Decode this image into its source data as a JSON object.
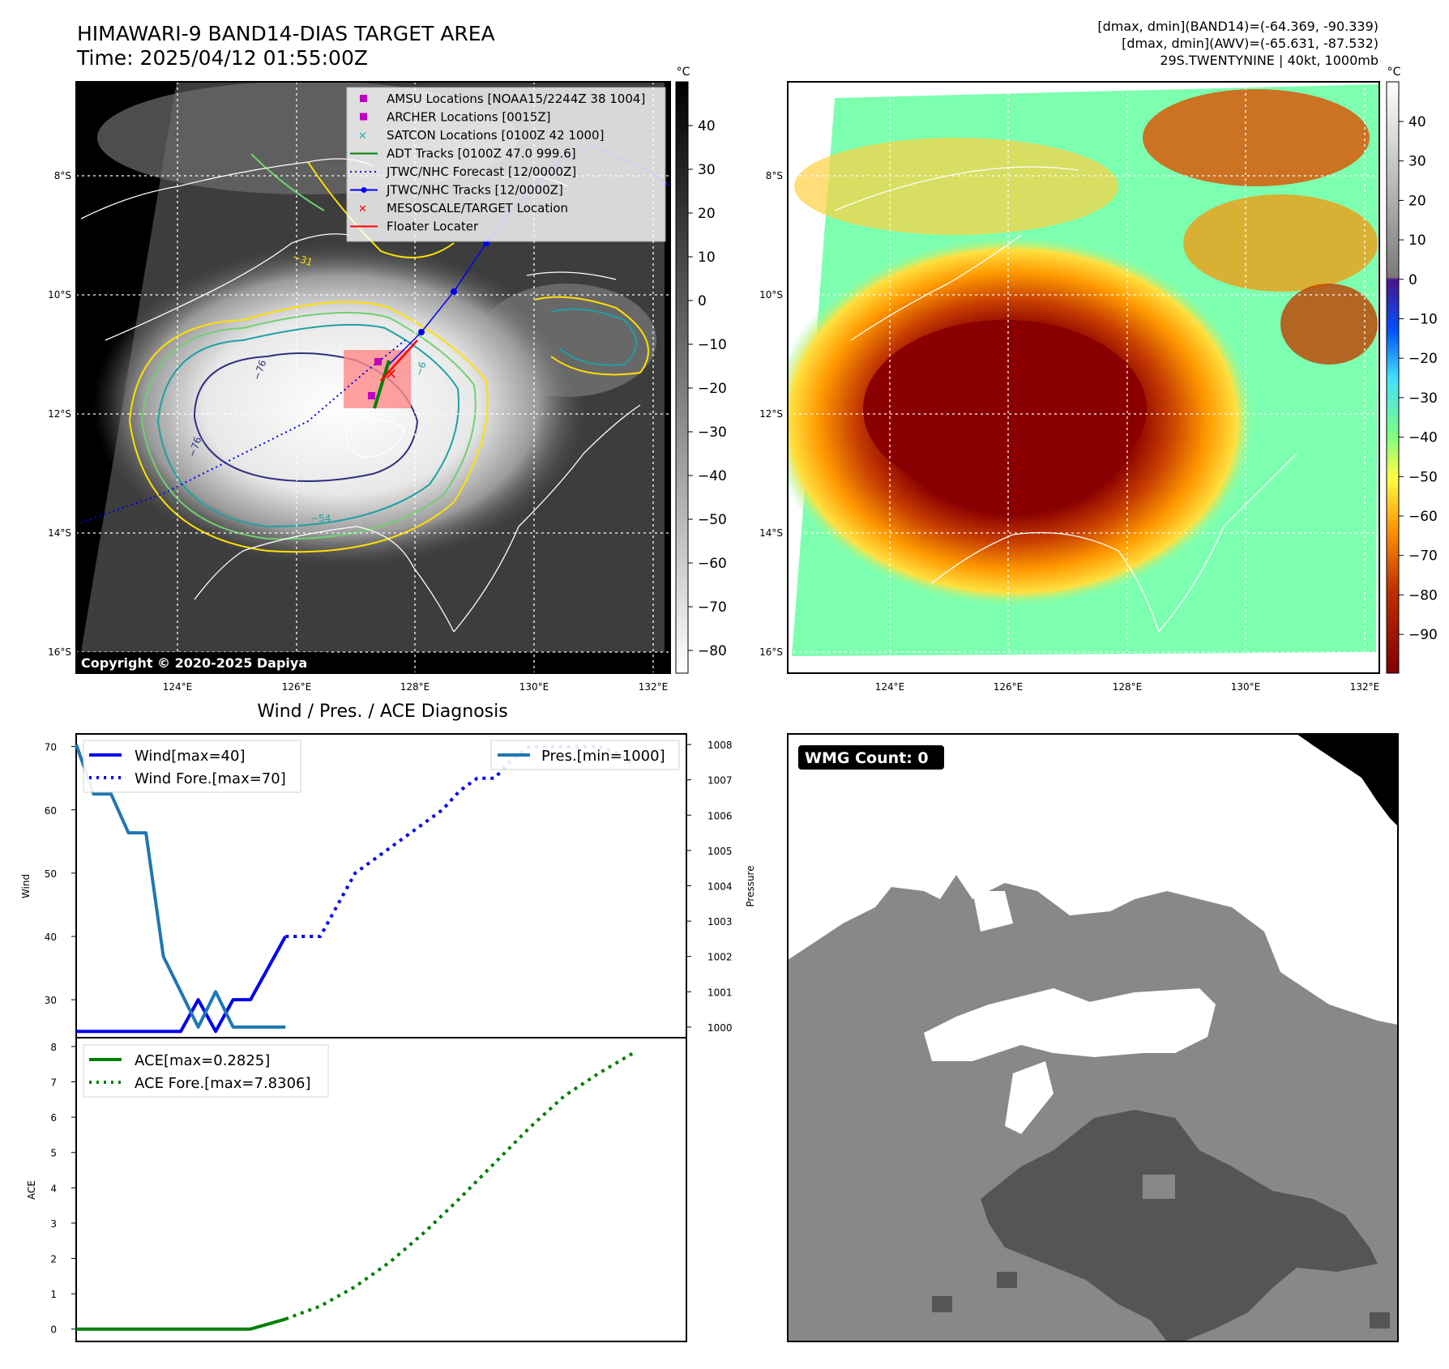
{
  "header": {
    "title_line1": "HIMAWARI-9 BAND14-DIAS TARGET AREA",
    "title_line2": "Time: 2025/04/12 01:55:00Z",
    "info_line1": "[dmax, dmin](BAND14)=(-64.369, -90.339)",
    "info_line2": "[dmax, dmin](AWV)=(-65.631, -87.532)",
    "info_line3": "29S.TWENTYNINE | 40kt, 1000mb"
  },
  "map_left": {
    "copyright": "Copyright © 2020-2025 Dapiya",
    "unit": "°C",
    "colorbar_ticks": [
      "40",
      "30",
      "20",
      "10",
      "0",
      "−10",
      "−20",
      "−30",
      "−40",
      "−50",
      "−60",
      "−70",
      "−80"
    ],
    "lat_labels": [
      "8°S",
      "10°S",
      "12°S",
      "14°S",
      "16°S"
    ],
    "lon_labels": [
      "124°E",
      "126°E",
      "128°E",
      "130°E",
      "132°E"
    ],
    "contour_labels": [
      "−76",
      "−76",
      "−54",
      "−6",
      "−31"
    ],
    "legend": [
      {
        "label": "AMSU Locations [NOAA15/2244Z 38 1004]",
        "color": "#c000c0",
        "marker": "square"
      },
      {
        "label": "ARCHER Locations [0015Z]",
        "color": "#c000c0",
        "marker": "square"
      },
      {
        "label": "SATCON Locations [0100Z 42 1000]",
        "color": "#20b0b0",
        "marker": "x"
      },
      {
        "label": "ADT Tracks [0100Z 47.0 999.6]",
        "color": "#008000",
        "marker": "line"
      },
      {
        "label": "JTWC/NHC Forecast [12/0000Z]",
        "color": "#0000ff",
        "marker": "dotted"
      },
      {
        "label": "JTWC/NHC Tracks [12/0000Z]",
        "color": "#0000ff",
        "marker": "line-dot"
      },
      {
        "label": "MESOSCALE/TARGET Location",
        "color": "#ff0000",
        "marker": "x"
      },
      {
        "label": "Floater Locater",
        "color": "#ff0000",
        "marker": "line"
      }
    ]
  },
  "map_right": {
    "unit": "°C",
    "colorbar_ticks": [
      "40",
      "30",
      "20",
      "10",
      "0",
      "−10",
      "−20",
      "−30",
      "−40",
      "−50",
      "−60",
      "−70",
      "−80",
      "−90"
    ],
    "lat_labels": [
      "8°S",
      "10°S",
      "12°S",
      "14°S",
      "16°S"
    ],
    "lon_labels": [
      "124°E",
      "126°E",
      "128°E",
      "130°E",
      "132°E"
    ]
  },
  "wmg": {
    "label": "WMG Count: 0"
  },
  "colors": {
    "wind": "#0000ee",
    "pressure": "#1f77b4",
    "ace": "#008000"
  },
  "chart_data": [
    {
      "type": "line",
      "title": "Wind / Pres. / ACE Diagnosis",
      "ylabel": "Wind",
      "ylabel_right": "Pressure",
      "ylim": [
        24,
        72
      ],
      "ylim_right": [
        999.7,
        1008.3
      ],
      "yticks": [
        30,
        40,
        50,
        60,
        70
      ],
      "yticks_right": [
        1000,
        1001,
        1002,
        1003,
        1004,
        1005,
        1006,
        1007,
        1008
      ],
      "xlim": [
        0,
        35
      ],
      "series": [
        {
          "name": "Wind[max=40]",
          "axis": "left",
          "style": "solid",
          "x": [
            0,
            6,
            7,
            8,
            9,
            10,
            11,
            12
          ],
          "values": [
            25,
            25,
            30,
            25,
            30,
            30,
            35,
            40
          ]
        },
        {
          "name": "Wind Fore.[max=70]",
          "axis": "left",
          "style": "dotted",
          "x": [
            12,
            14,
            15,
            16,
            17,
            18,
            19,
            20,
            21,
            22,
            23,
            24,
            25,
            26,
            27,
            28,
            29,
            30,
            31,
            32
          ],
          "values": [
            40,
            40,
            45,
            50,
            52,
            54,
            56,
            58,
            60,
            63,
            65,
            65,
            68,
            70,
            70,
            70,
            70,
            70,
            69,
            67
          ]
        },
        {
          "name": "Pres.[min=1000]",
          "axis": "right",
          "style": "solid",
          "x": [
            0,
            1,
            2,
            3,
            4,
            5,
            6,
            7,
            8,
            9,
            10,
            11,
            12
          ],
          "values": [
            1008,
            1006.6,
            1006.6,
            1005.5,
            1005.5,
            1002,
            1001,
            1000,
            1001,
            1000,
            1000,
            1000,
            1000
          ]
        }
      ],
      "legend_left": [
        "Wind[max=40]",
        "Wind Fore.[max=70]"
      ],
      "legend_right": [
        "Pres.[min=1000]"
      ]
    },
    {
      "type": "line",
      "ylabel": "ACE",
      "ylim": [
        -0.35,
        8.25
      ],
      "yticks": [
        0,
        1,
        2,
        3,
        4,
        5,
        6,
        7,
        8
      ],
      "xlim": [
        0,
        35
      ],
      "series": [
        {
          "name": "ACE[max=0.2825]",
          "style": "solid",
          "x": [
            0,
            10,
            11,
            12
          ],
          "values": [
            0,
            0,
            0.14,
            0.2825
          ]
        },
        {
          "name": "ACE Fore.[max=7.8306]",
          "style": "dotted",
          "x": [
            12,
            14,
            16,
            18,
            20,
            22,
            24,
            26,
            28,
            30,
            32
          ],
          "values": [
            0.2825,
            0.65,
            1.2,
            1.9,
            2.75,
            3.7,
            4.7,
            5.7,
            6.6,
            7.25,
            7.8306
          ]
        }
      ],
      "legend": [
        "ACE[max=0.2825]",
        "ACE Fore.[max=7.8306]"
      ]
    }
  ]
}
